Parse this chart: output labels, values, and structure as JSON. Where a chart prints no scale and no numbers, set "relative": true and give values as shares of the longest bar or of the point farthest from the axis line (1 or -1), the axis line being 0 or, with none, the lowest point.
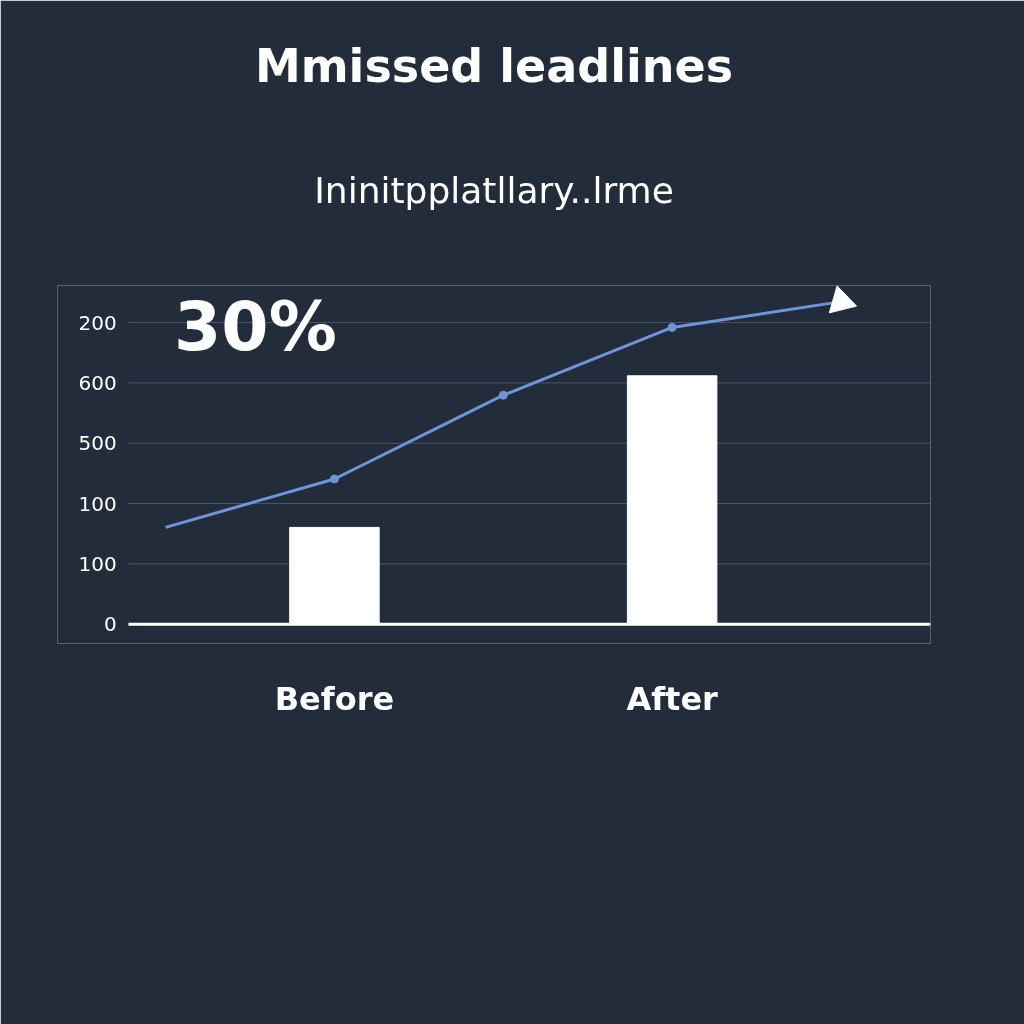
{
  "chart_data": {
    "type": "bar",
    "title": "Mmissed leadlines",
    "subtitle": "Ininitpplatllary..lrme",
    "relative": true,
    "categories": [
      null,
      "Before",
      null,
      "After",
      null
    ],
    "series": [
      {
        "color": "#ffffff",
        "values": [
          null,
          0.3,
          null,
          0.77,
          null
        ]
      },
      {
        "type": "line",
        "color": "#6f95d6",
        "values": [
          0.3,
          0.45,
          0.71,
          0.92,
          1.0
        ],
        "marker": "circle",
        "line_style": "solid"
      }
    ],
    "grid": "y",
    "annotations": [
      "30%",
      "0",
      "100",
      "100",
      "500",
      "600",
      "200"
    ]
  }
}
